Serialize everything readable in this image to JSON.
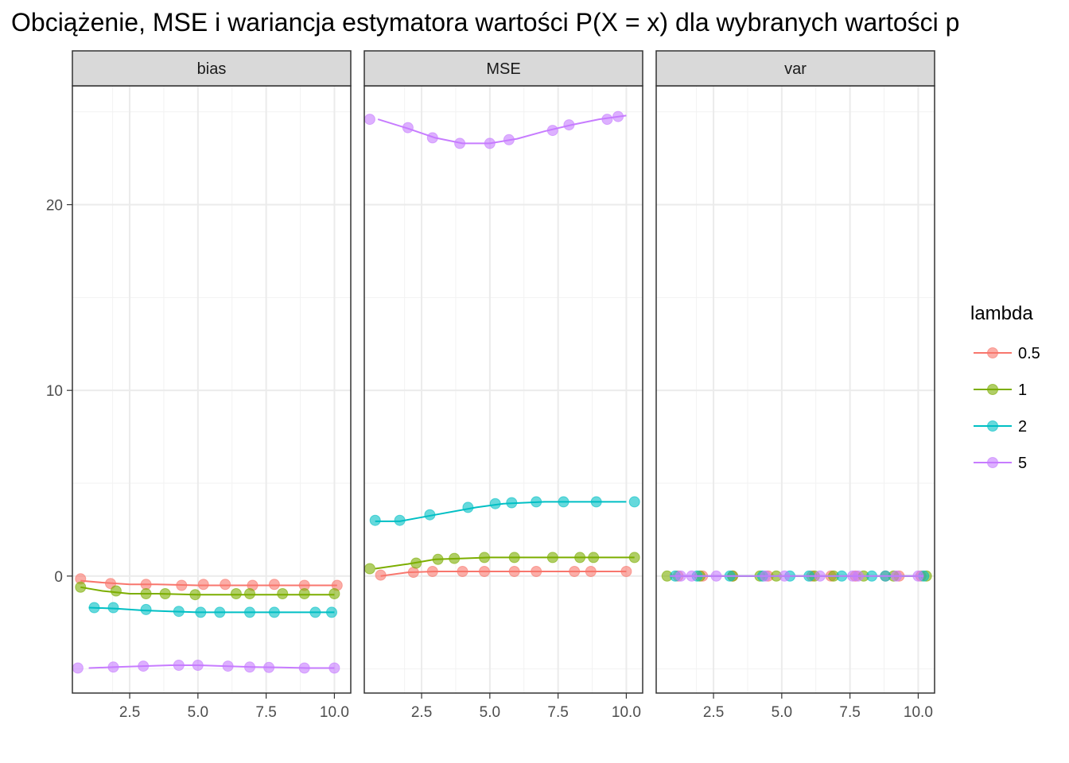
{
  "title": "Obciążenie, MSE i wariancja estymatora wartości P(X = x) dla wybranych wartości p",
  "chart_data": {
    "type": "line",
    "title": "Obciążenie, MSE i wariancja estymatora wartości P(X = x) dla wybranych wartości p",
    "xlabel": "",
    "ylabel": "",
    "facets": [
      "bias",
      "MSE",
      "var"
    ],
    "xlim": [
      0.4,
      10.6
    ],
    "ylim": [
      -6.3,
      26.4
    ],
    "x_ticks": [
      2.5,
      5.0,
      7.5,
      10.0
    ],
    "x_tick_labels": [
      "2.5",
      "5.0",
      "7.5",
      "10.0"
    ],
    "y_ticks": [
      0,
      10,
      20
    ],
    "y_tick_labels": [
      "0",
      "10",
      "20"
    ],
    "grid": true,
    "legend": {
      "title": "lambda",
      "position": "right",
      "entries": [
        "0.5",
        "1",
        "2",
        "5"
      ]
    },
    "series_colors": {
      "0.5": "#F8766D",
      "1": "#7CAE00",
      "2": "#00BFC4",
      "5": "#C77CFF"
    },
    "panels": [
      {
        "facet": "bias",
        "series": [
          {
            "lambda": "0.5",
            "line": [
              [
                0.7,
                -0.25
              ],
              [
                1.5,
                -0.35
              ],
              [
                2.5,
                -0.45
              ],
              [
                3.5,
                -0.45
              ],
              [
                5.0,
                -0.5
              ],
              [
                7.0,
                -0.5
              ],
              [
                9.0,
                -0.5
              ],
              [
                10.1,
                -0.5
              ]
            ],
            "points": [
              [
                0.7,
                -0.15
              ],
              [
                1.8,
                -0.4
              ],
              [
                3.1,
                -0.45
              ],
              [
                4.4,
                -0.5
              ],
              [
                5.2,
                -0.45
              ],
              [
                6.0,
                -0.45
              ],
              [
                7.0,
                -0.5
              ],
              [
                7.8,
                -0.45
              ],
              [
                8.9,
                -0.5
              ],
              [
                10.1,
                -0.5
              ]
            ]
          },
          {
            "lambda": "1",
            "line": [
              [
                0.7,
                -0.6
              ],
              [
                1.5,
                -0.8
              ],
              [
                2.5,
                -0.95
              ],
              [
                3.5,
                -0.95
              ],
              [
                5.0,
                -1.0
              ],
              [
                7.0,
                -1.0
              ],
              [
                9.0,
                -1.0
              ],
              [
                10.0,
                -1.0
              ]
            ],
            "points": [
              [
                0.7,
                -0.6
              ],
              [
                2.0,
                -0.8
              ],
              [
                3.1,
                -0.95
              ],
              [
                3.8,
                -0.95
              ],
              [
                4.9,
                -1.0
              ],
              [
                6.4,
                -0.95
              ],
              [
                6.9,
                -0.95
              ],
              [
                8.1,
                -0.95
              ],
              [
                8.9,
                -0.95
              ],
              [
                10.0,
                -0.95
              ]
            ]
          },
          {
            "lambda": "2",
            "line": [
              [
                1.0,
                -1.7
              ],
              [
                2.0,
                -1.75
              ],
              [
                3.0,
                -1.85
              ],
              [
                4.0,
                -1.9
              ],
              [
                5.0,
                -1.95
              ],
              [
                7.0,
                -1.95
              ],
              [
                9.0,
                -1.95
              ],
              [
                10.0,
                -1.95
              ]
            ],
            "points": [
              [
                1.2,
                -1.7
              ],
              [
                1.9,
                -1.7
              ],
              [
                3.1,
                -1.8
              ],
              [
                4.3,
                -1.9
              ],
              [
                5.1,
                -1.95
              ],
              [
                5.8,
                -1.95
              ],
              [
                6.9,
                -1.95
              ],
              [
                7.8,
                -1.95
              ],
              [
                9.3,
                -1.95
              ],
              [
                9.9,
                -1.95
              ]
            ]
          },
          {
            "lambda": "5",
            "line": [
              [
                1.0,
                -4.95
              ],
              [
                2.0,
                -4.9
              ],
              [
                3.0,
                -4.85
              ],
              [
                4.0,
                -4.8
              ],
              [
                5.0,
                -4.8
              ],
              [
                6.0,
                -4.85
              ],
              [
                7.0,
                -4.9
              ],
              [
                8.0,
                -4.92
              ],
              [
                9.0,
                -4.95
              ],
              [
                10.0,
                -4.95
              ]
            ],
            "points": [
              [
                0.6,
                -4.95
              ],
              [
                1.9,
                -4.9
              ],
              [
                3.0,
                -4.85
              ],
              [
                4.3,
                -4.8
              ],
              [
                5.0,
                -4.8
              ],
              [
                6.1,
                -4.85
              ],
              [
                6.9,
                -4.9
              ],
              [
                7.6,
                -4.92
              ],
              [
                8.9,
                -4.95
              ],
              [
                10.0,
                -4.95
              ]
            ]
          }
        ]
      },
      {
        "facet": "MSE",
        "series": [
          {
            "lambda": "0.5",
            "line": [
              [
                1.0,
                0.0
              ],
              [
                2.0,
                0.2
              ],
              [
                3.0,
                0.25
              ],
              [
                5.0,
                0.25
              ],
              [
                7.0,
                0.25
              ],
              [
                8.0,
                0.25
              ],
              [
                10.0,
                0.25
              ]
            ],
            "points": [
              [
                1.0,
                0.05
              ],
              [
                2.2,
                0.2
              ],
              [
                2.9,
                0.25
              ],
              [
                4.0,
                0.25
              ],
              [
                4.8,
                0.25
              ],
              [
                5.9,
                0.25
              ],
              [
                6.7,
                0.25
              ],
              [
                8.1,
                0.25
              ],
              [
                8.7,
                0.25
              ],
              [
                10.0,
                0.25
              ]
            ]
          },
          {
            "lambda": "1",
            "line": [
              [
                0.8,
                0.4
              ],
              [
                2.0,
                0.65
              ],
              [
                3.0,
                0.9
              ],
              [
                4.0,
                0.95
              ],
              [
                5.0,
                1.0
              ],
              [
                7.0,
                1.0
              ],
              [
                9.0,
                1.0
              ],
              [
                10.3,
                1.0
              ]
            ],
            "points": [
              [
                0.6,
                0.4
              ],
              [
                2.3,
                0.7
              ],
              [
                3.1,
                0.9
              ],
              [
                3.7,
                0.95
              ],
              [
                4.8,
                1.0
              ],
              [
                5.9,
                1.0
              ],
              [
                7.3,
                1.0
              ],
              [
                8.3,
                1.0
              ],
              [
                8.8,
                1.0
              ],
              [
                10.3,
                1.0
              ]
            ]
          },
          {
            "lambda": "2",
            "line": [
              [
                0.8,
                2.95
              ],
              [
                1.7,
                2.95
              ],
              [
                3.0,
                3.3
              ],
              [
                4.5,
                3.7
              ],
              [
                5.5,
                3.9
              ],
              [
                7.0,
                4.0
              ],
              [
                9.0,
                4.0
              ],
              [
                10.0,
                4.0
              ]
            ],
            "points": [
              [
                0.8,
                3.0
              ],
              [
                1.7,
                3.0
              ],
              [
                2.8,
                3.3
              ],
              [
                4.2,
                3.7
              ],
              [
                5.2,
                3.9
              ],
              [
                5.8,
                3.95
              ],
              [
                6.7,
                4.0
              ],
              [
                7.7,
                4.0
              ],
              [
                8.9,
                4.0
              ],
              [
                10.3,
                4.0
              ]
            ]
          },
          {
            "lambda": "5",
            "line": [
              [
                0.9,
                24.6
              ],
              [
                2.0,
                24.1
              ],
              [
                3.0,
                23.6
              ],
              [
                4.0,
                23.3
              ],
              [
                5.0,
                23.3
              ],
              [
                6.0,
                23.55
              ],
              [
                7.0,
                23.95
              ],
              [
                8.0,
                24.3
              ],
              [
                9.0,
                24.6
              ],
              [
                10.0,
                24.8
              ]
            ],
            "points": [
              [
                0.6,
                24.6
              ],
              [
                2.0,
                24.15
              ],
              [
                2.9,
                23.6
              ],
              [
                3.9,
                23.3
              ],
              [
                5.0,
                23.3
              ],
              [
                5.7,
                23.5
              ],
              [
                7.3,
                24.0
              ],
              [
                7.9,
                24.3
              ],
              [
                9.3,
                24.6
              ],
              [
                9.7,
                24.75
              ]
            ]
          }
        ]
      },
      {
        "facet": "var",
        "series": [
          {
            "lambda": "0.5",
            "line": [
              [
                0.9,
                0.0
              ],
              [
                10.2,
                0.0
              ]
            ],
            "points": [
              [
                1.2,
                0.0
              ],
              [
                2.1,
                0.0
              ],
              [
                3.2,
                0.0
              ],
              [
                4.5,
                0.0
              ],
              [
                6.1,
                0.0
              ],
              [
                6.8,
                0.0
              ],
              [
                7.7,
                0.0
              ],
              [
                8.8,
                0.0
              ],
              [
                9.3,
                0.0
              ],
              [
                10.1,
                0.0
              ]
            ]
          },
          {
            "lambda": "1",
            "line": [
              [
                0.9,
                0.0
              ],
              [
                10.2,
                0.0
              ]
            ],
            "points": [
              [
                0.8,
                0.0
              ],
              [
                2.0,
                0.0
              ],
              [
                3.2,
                0.0
              ],
              [
                4.2,
                0.0
              ],
              [
                4.8,
                0.0
              ],
              [
                6.2,
                0.0
              ],
              [
                6.9,
                0.0
              ],
              [
                8.0,
                0.0
              ],
              [
                9.1,
                0.0
              ],
              [
                10.3,
                0.0
              ]
            ]
          },
          {
            "lambda": "2",
            "line": [
              [
                0.9,
                0.0
              ],
              [
                10.2,
                0.0
              ]
            ],
            "points": [
              [
                1.1,
                0.0
              ],
              [
                1.9,
                0.0
              ],
              [
                3.1,
                0.0
              ],
              [
                4.3,
                0.0
              ],
              [
                5.3,
                0.0
              ],
              [
                6.0,
                0.0
              ],
              [
                7.2,
                0.0
              ],
              [
                8.3,
                0.0
              ],
              [
                8.8,
                0.0
              ],
              [
                10.2,
                0.0
              ]
            ]
          },
          {
            "lambda": "5",
            "line": [
              [
                0.9,
                0.0
              ],
              [
                10.2,
                0.0
              ]
            ],
            "points": [
              [
                1.3,
                0.0
              ],
              [
                1.7,
                0.0
              ],
              [
                2.6,
                0.0
              ],
              [
                4.4,
                0.0
              ],
              [
                5.1,
                0.0
              ],
              [
                6.4,
                0.0
              ],
              [
                7.6,
                0.0
              ],
              [
                7.8,
                0.0
              ],
              [
                9.2,
                0.0
              ],
              [
                10.0,
                0.0
              ]
            ]
          }
        ]
      }
    ]
  }
}
